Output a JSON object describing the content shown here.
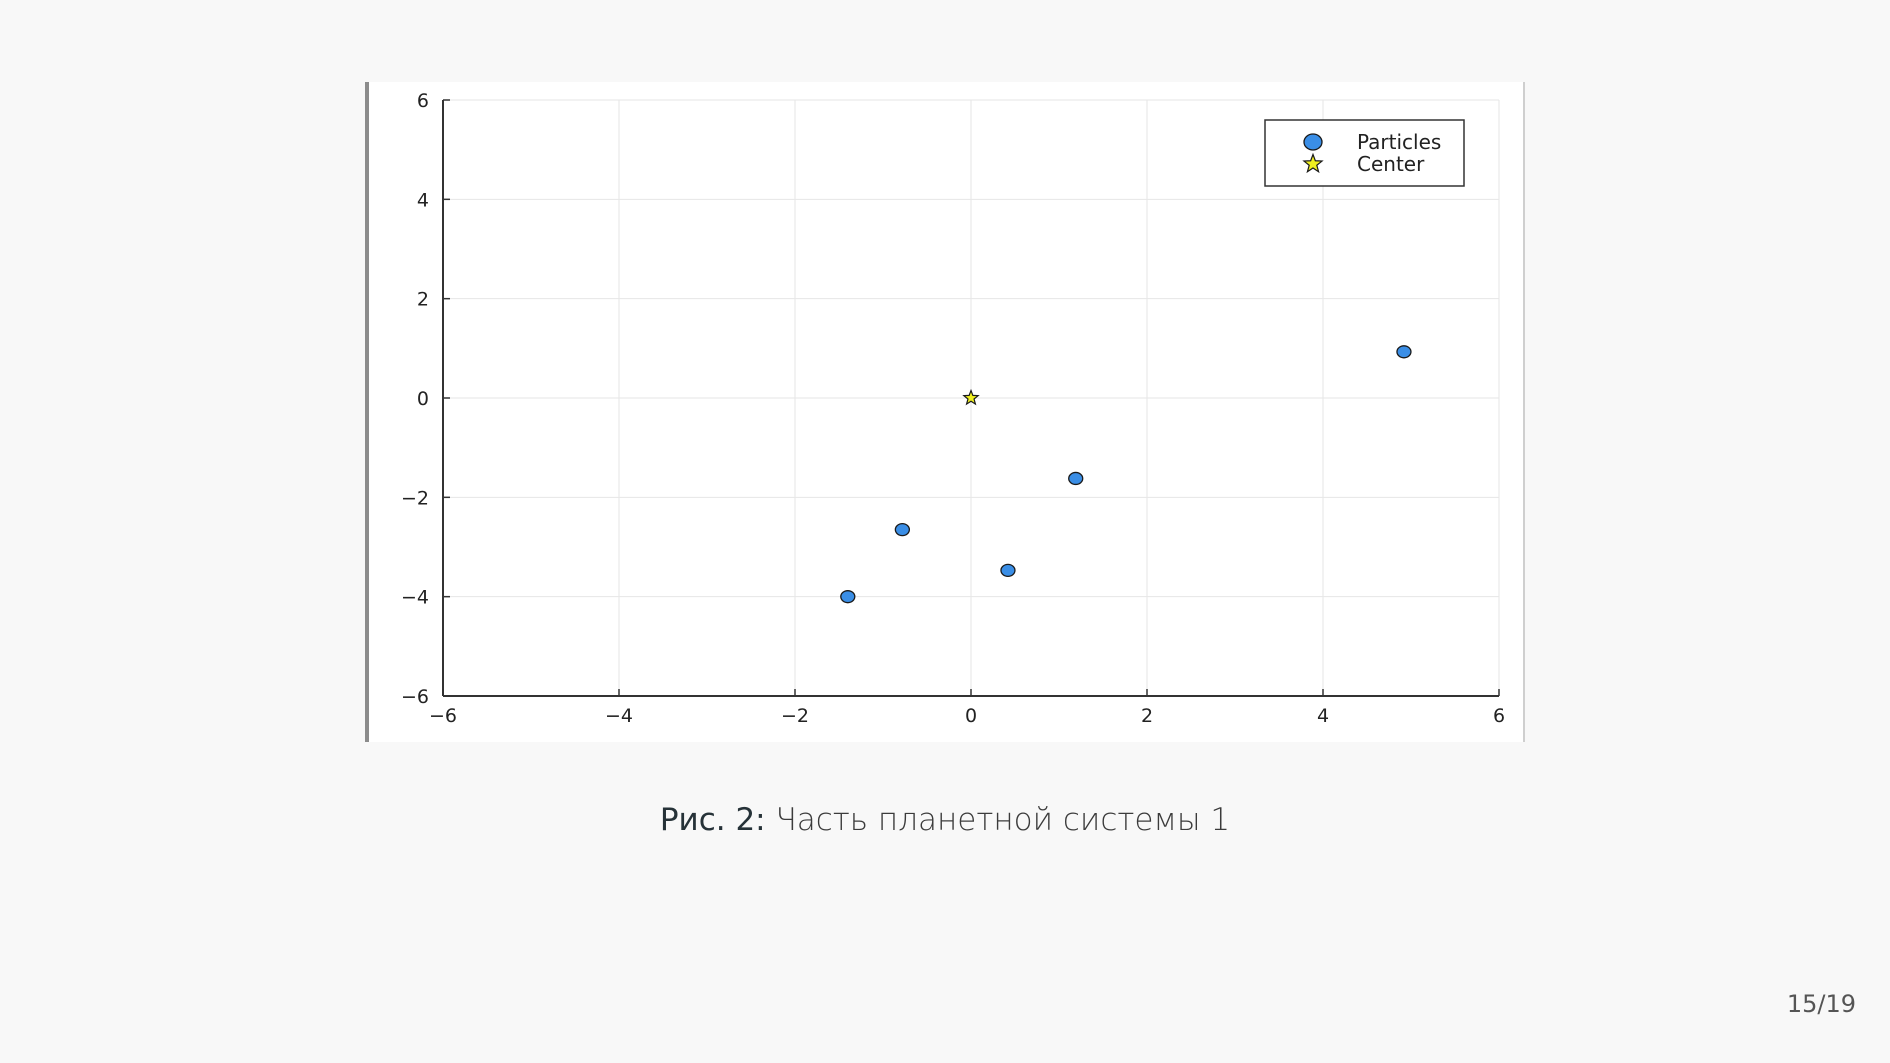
{
  "chart_data": {
    "type": "scatter",
    "xlim": [
      -6,
      6
    ],
    "ylim": [
      -6,
      6
    ],
    "xticks": [
      -6,
      -4,
      -2,
      0,
      2,
      4,
      6
    ],
    "yticks": [
      -6,
      -4,
      -2,
      0,
      2,
      4,
      6
    ],
    "xtick_labels": [
      "−6",
      "−4",
      "−2",
      "0",
      "2",
      "4",
      "6"
    ],
    "ytick_labels": [
      "−6",
      "−4",
      "−2",
      "0",
      "2",
      "4",
      "6"
    ],
    "grid": true,
    "legend_position": "top-right",
    "series": [
      {
        "name": "Particles",
        "marker": "circle",
        "color": "#3a8ee6",
        "points": [
          {
            "x": -1.4,
            "y": -4.0
          },
          {
            "x": -0.78,
            "y": -2.65
          },
          {
            "x": 0.42,
            "y": -3.47
          },
          {
            "x": 1.19,
            "y": -1.62
          },
          {
            "x": 4.92,
            "y": 0.93
          }
        ]
      },
      {
        "name": "Center",
        "marker": "star",
        "color": "#f0f020",
        "points": [
          {
            "x": 0,
            "y": 0
          }
        ]
      }
    ]
  },
  "caption": {
    "label": "Рис. 2:",
    "text": "Часть планетной системы 1"
  },
  "page_number": "15/19"
}
